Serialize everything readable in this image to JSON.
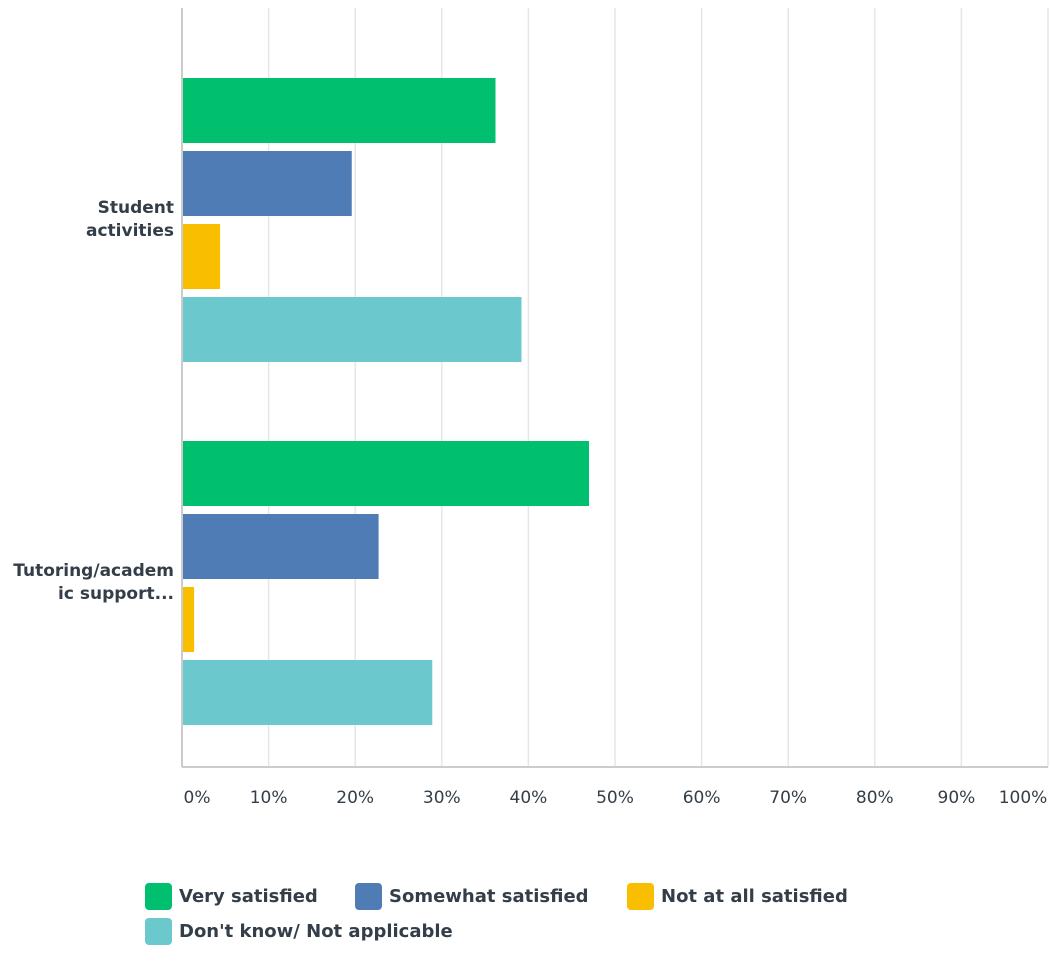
{
  "chart_data": {
    "type": "bar",
    "orientation": "horizontal",
    "categories": [
      "Student\nactivities",
      "Tutoring/academ\nic support..."
    ],
    "series": [
      {
        "name": "Very satisfied",
        "color": "#00bf6f",
        "values": [
          36.2,
          47.0
        ]
      },
      {
        "name": "Somewhat satisfied",
        "color": "#507cb6",
        "values": [
          19.6,
          22.7
        ]
      },
      {
        "name": "Not at all satisfied",
        "color": "#f9be00",
        "values": [
          4.4,
          1.4
        ]
      },
      {
        "name": "Don't know/ Not applicable",
        "color": "#6bc8cd",
        "values": [
          39.2,
          28.9
        ]
      }
    ],
    "xlim": [
      0,
      100
    ],
    "xticks": [
      "0%",
      "10%",
      "20%",
      "30%",
      "40%",
      "50%",
      "60%",
      "70%",
      "80%",
      "90%",
      "100%"
    ],
    "grid": true,
    "legend_position": "bottom"
  }
}
